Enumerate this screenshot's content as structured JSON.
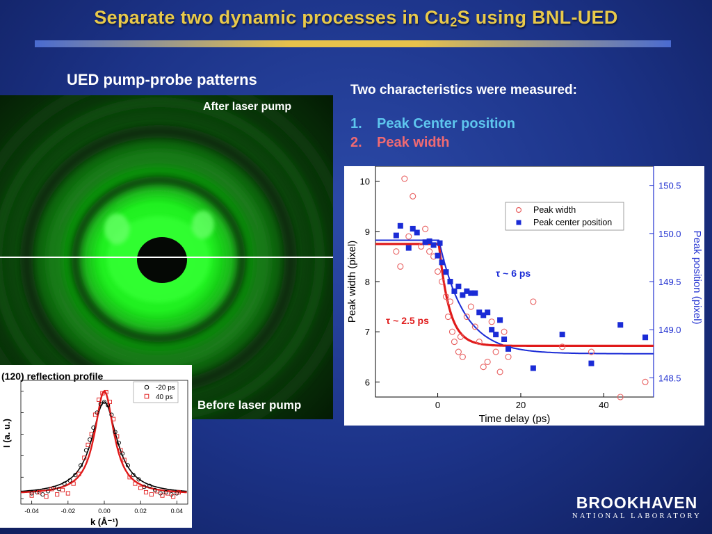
{
  "title": {
    "main": "Separate two dynamic processes in Cu",
    "sub": "2",
    "rest": "S using BNL-UED"
  },
  "left_heading": "UED pump-probe patterns",
  "pattern_labels": {
    "after": "After laser pump",
    "before": "Before laser pump"
  },
  "right_heading": "Two characteristics were measured:",
  "list": [
    {
      "num": "1.",
      "text": "Peak Center position",
      "color": "#5ec6ee"
    },
    {
      "num": "2.",
      "text": "Peak width",
      "color": "#f06a72"
    }
  ],
  "logo": {
    "name": "BROOKHAVEN",
    "sub": "NATIONAL LABORATORY"
  },
  "chart_data": [
    {
      "type": "scatter",
      "title": "",
      "xlabel": "Time delay (ps)",
      "ylabel_left": "Peak width (pixel)",
      "ylabel_right": "Peak position (pixel)",
      "xlim": [
        -15,
        52
      ],
      "ylim_left": [
        5.7,
        10.3
      ],
      "ylim_right": [
        148.3,
        150.7
      ],
      "x_ticks": [
        0,
        20,
        40
      ],
      "y_ticks_left": [
        6,
        7,
        8,
        9,
        10
      ],
      "y_ticks_right": [
        148.5,
        149.0,
        149.5,
        150.0,
        150.5
      ],
      "annotations": [
        {
          "text": "τ ~ 6 ps",
          "color": "#1a2bd6"
        },
        {
          "text": "τ ~ 2.5 ps",
          "color": "#e01a1a"
        }
      ],
      "series": [
        {
          "name": "Peak width",
          "axis": "left",
          "marker": "open-circle",
          "color": "#e86060",
          "points": [
            [
              -10,
              8.6
            ],
            [
              -9,
              8.3
            ],
            [
              -8,
              10.05
            ],
            [
              -7,
              8.9
            ],
            [
              -6,
              9.7
            ],
            [
              -4,
              8.7
            ],
            [
              -3,
              9.05
            ],
            [
              -2,
              8.6
            ],
            [
              -1,
              8.5
            ],
            [
              0,
              8.2
            ],
            [
              1,
              8.0
            ],
            [
              2,
              7.7
            ],
            [
              2.5,
              7.3
            ],
            [
              3,
              7.6
            ],
            [
              3.5,
              7.0
            ],
            [
              4,
              6.8
            ],
            [
              5,
              6.6
            ],
            [
              5.5,
              6.9
            ],
            [
              6,
              6.5
            ],
            [
              7,
              7.3
            ],
            [
              8,
              7.5
            ],
            [
              9,
              7.1
            ],
            [
              10,
              6.8
            ],
            [
              11,
              6.3
            ],
            [
              12,
              6.4
            ],
            [
              13,
              7.2
            ],
            [
              14,
              6.6
            ],
            [
              15,
              6.2
            ],
            [
              16,
              7.0
            ],
            [
              17,
              6.5
            ],
            [
              23,
              7.6
            ],
            [
              30,
              6.7
            ],
            [
              37,
              6.6
            ],
            [
              44,
              5.7
            ],
            [
              50,
              6.0
            ]
          ]
        },
        {
          "name": "Peak center position",
          "axis": "right",
          "marker": "filled-square",
          "color": "#1a2bd6",
          "points": [
            [
              -10,
              149.98
            ],
            [
              -9,
              150.08
            ],
            [
              -7,
              149.85
            ],
            [
              -6,
              150.05
            ],
            [
              -5,
              150.01
            ],
            [
              -3,
              149.91
            ],
            [
              -2,
              149.92
            ],
            [
              -1,
              149.88
            ],
            [
              0,
              149.77
            ],
            [
              0.5,
              149.9
            ],
            [
              1,
              149.7
            ],
            [
              2,
              149.6
            ],
            [
              3,
              149.5
            ],
            [
              4,
              149.4
            ],
            [
              5,
              149.45
            ],
            [
              6,
              149.36
            ],
            [
              7,
              149.4
            ],
            [
              8,
              149.38
            ],
            [
              9,
              149.38
            ],
            [
              10,
              149.18
            ],
            [
              11,
              149.15
            ],
            [
              12,
              149.18
            ],
            [
              13,
              149.0
            ],
            [
              14,
              148.95
            ],
            [
              15,
              149.1
            ],
            [
              16,
              148.9
            ],
            [
              17,
              148.8
            ],
            [
              23,
              148.6
            ],
            [
              30,
              148.95
            ],
            [
              37,
              148.65
            ],
            [
              44,
              149.05
            ],
            [
              50,
              148.92
            ]
          ]
        }
      ],
      "legend": [
        "Peak width",
        "Peak center position"
      ],
      "fits": [
        {
          "name": "tau 6 ps fit",
          "color": "#1a2bd6",
          "axis": "right",
          "baseline": 149.93,
          "final": 148.75,
          "t0": 0.3,
          "tau": 6
        },
        {
          "name": "tau 2.5 ps fit",
          "color": "#e01a1a",
          "axis": "left",
          "baseline": 8.75,
          "final": 6.72,
          "t0": 0.3,
          "tau": 2.5
        }
      ]
    },
    {
      "type": "scatter",
      "title": "(120) reflection profile",
      "xlabel": "k (Å⁻¹)",
      "ylabel": "I (a. u.)",
      "xlim": [
        -0.046,
        0.046
      ],
      "ylim": [
        -0.05,
        1.1
      ],
      "x_ticks": [
        "-0.04",
        "-0.02",
        "0.00",
        "0.02",
        "0.04"
      ],
      "legend": [
        "-20 ps",
        "40 ps"
      ],
      "series": [
        {
          "name": "-20 ps",
          "marker": "open-circle",
          "color": "#000000",
          "width": 0.0085,
          "amp": 0.9,
          "points": [
            [
              -0.04,
              0.05
            ],
            [
              -0.037,
              0.06
            ],
            [
              -0.034,
              0.04
            ],
            [
              -0.031,
              0.07
            ],
            [
              -0.028,
              0.1
            ],
            [
              -0.025,
              0.09
            ],
            [
              -0.022,
              0.14
            ],
            [
              -0.019,
              0.17
            ],
            [
              -0.016,
              0.22
            ],
            [
              -0.013,
              0.31
            ],
            [
              -0.01,
              0.45
            ],
            [
              -0.008,
              0.55
            ],
            [
              -0.006,
              0.66
            ],
            [
              -0.004,
              0.8
            ],
            [
              -0.002,
              0.88
            ],
            [
              0.0,
              0.9
            ],
            [
              0.002,
              0.87
            ],
            [
              0.004,
              0.78
            ],
            [
              0.006,
              0.62
            ],
            [
              0.008,
              0.52
            ],
            [
              0.01,
              0.42
            ],
            [
              0.013,
              0.31
            ],
            [
              0.016,
              0.22
            ],
            [
              0.019,
              0.18
            ],
            [
              0.022,
              0.11
            ],
            [
              0.025,
              0.12
            ],
            [
              0.028,
              0.08
            ],
            [
              0.031,
              0.05
            ],
            [
              0.034,
              0.06
            ],
            [
              0.037,
              0.04
            ],
            [
              0.04,
              0.05
            ]
          ]
        },
        {
          "name": "40 ps",
          "marker": "open-square",
          "color": "#e01a1a",
          "width": 0.0065,
          "amp": 1.0,
          "points": [
            [
              -0.04,
              0.03
            ],
            [
              -0.036,
              0.06
            ],
            [
              -0.032,
              0.02
            ],
            [
              -0.029,
              0.09
            ],
            [
              -0.026,
              0.04
            ],
            [
              -0.023,
              0.08
            ],
            [
              -0.02,
              0.05
            ],
            [
              -0.017,
              0.14
            ],
            [
              -0.014,
              0.23
            ],
            [
              -0.011,
              0.38
            ],
            [
              -0.009,
              0.5
            ],
            [
              -0.007,
              0.6
            ],
            [
              -0.005,
              0.78
            ],
            [
              -0.003,
              0.92
            ],
            [
              -0.001,
              0.98
            ],
            [
              0.001,
              0.99
            ],
            [
              0.003,
              0.9
            ],
            [
              0.005,
              0.74
            ],
            [
              0.007,
              0.58
            ],
            [
              0.009,
              0.45
            ],
            [
              0.011,
              0.36
            ],
            [
              0.014,
              0.2
            ],
            [
              0.017,
              0.14
            ],
            [
              0.02,
              0.1
            ],
            [
              0.023,
              0.06
            ],
            [
              0.026,
              0.04
            ],
            [
              0.029,
              0.07
            ],
            [
              0.032,
              0.03
            ],
            [
              0.035,
              0.05
            ],
            [
              0.038,
              0.02
            ],
            [
              0.041,
              0.06
            ]
          ]
        }
      ]
    }
  ]
}
